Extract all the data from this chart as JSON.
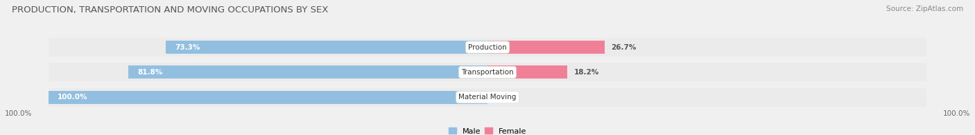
{
  "title": "PRODUCTION, TRANSPORTATION AND MOVING OCCUPATIONS BY SEX",
  "source": "Source: ZipAtlas.com",
  "categories": [
    "Material Moving",
    "Transportation",
    "Production"
  ],
  "male_values": [
    100.0,
    81.8,
    73.3
  ],
  "female_values": [
    0.0,
    18.2,
    26.7
  ],
  "male_color": "#92bfe0",
  "female_color": "#f08098",
  "bar_bg_color": "#e2e2e2",
  "bar_bg_color2": "#ebebeb",
  "male_label": "Male",
  "female_label": "Female",
  "title_fontsize": 9.5,
  "source_fontsize": 7.5,
  "label_fontsize": 7.5,
  "value_fontsize": 7.5,
  "axis_label_fontsize": 7.5,
  "legend_fontsize": 8,
  "bar_height": 0.52,
  "figsize": [
    14.06,
    1.96
  ],
  "dpi": 100,
  "x_left_label": "100.0%",
  "x_right_label": "100.0%",
  "background_color": "#f0f0f0"
}
